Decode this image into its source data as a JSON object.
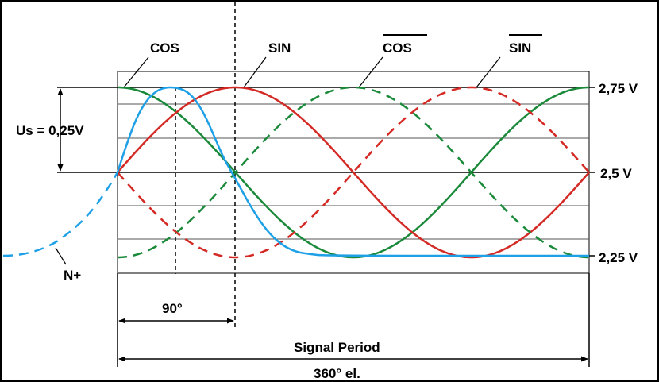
{
  "labels": {
    "cos": "COS",
    "sin": "SIN",
    "cos_inv": "COS",
    "sin_inv": "SIN",
    "us": "Us = 0,25V",
    "v_high": "2,75 V",
    "v_mid": "2,5 V",
    "v_low": "2,25 V",
    "n_plus": "N+",
    "deg90": "90°",
    "signal_period": "Signal Period",
    "deg360": "360° el."
  },
  "colors": {
    "cos": "#1a8a3a",
    "sin": "#d42a25",
    "index": "#1ea0e6",
    "line": "#000000",
    "grid": "#555555"
  }
}
